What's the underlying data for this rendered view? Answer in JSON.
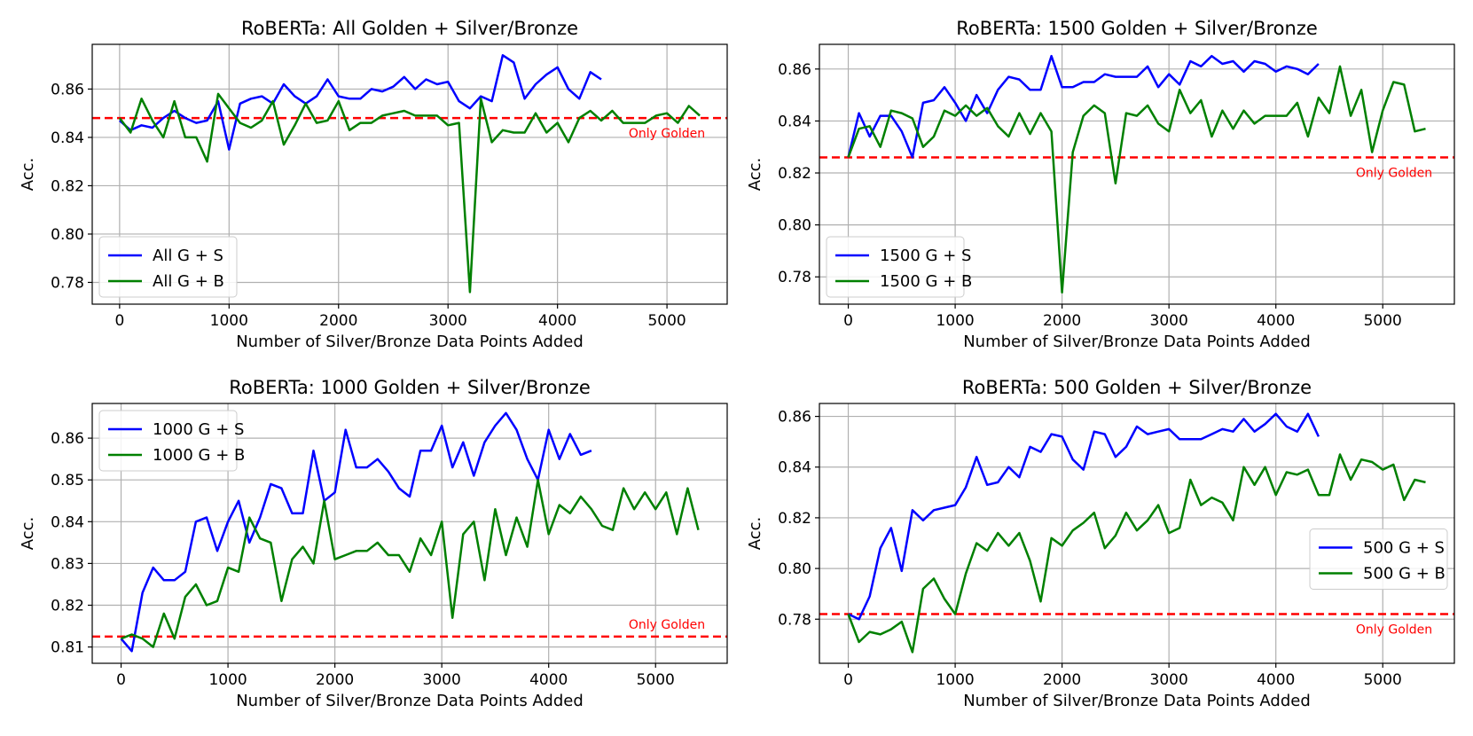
{
  "colors": {
    "G + S": "#0000ff",
    "G + B": "#008000",
    "golden": "#ff0000",
    "grid": "#b0b0b0"
  },
  "chart_data": [
    {
      "type": "line",
      "title": "RoBERTa: All Golden + Silver/Bronze",
      "xlabel": "Number of Silver/Bronze Data Points Added",
      "ylabel": "Acc.",
      "xlim": [
        -250,
        5550
      ],
      "ylim": [
        0.771,
        0.8785
      ],
      "xticks": [
        0,
        1000,
        2000,
        3000,
        4000,
        5000
      ],
      "yticks": [
        0.78,
        0.8,
        0.82,
        0.84,
        0.86
      ],
      "ytick_labels": [
        "0.78",
        "0.80",
        "0.82",
        "0.84",
        "0.86"
      ],
      "golden": 0.848,
      "golden_label": "Only Golden",
      "golden_label_pos": "right-below",
      "legend_position": "lower-left",
      "series": [
        {
          "name": "All G + S",
          "color_key": "G + S",
          "x_start": 0,
          "x_step": 100,
          "values": [
            0.847,
            0.843,
            0.845,
            0.844,
            0.848,
            0.851,
            0.848,
            0.846,
            0.847,
            0.855,
            0.835,
            0.854,
            0.856,
            0.857,
            0.854,
            0.862,
            0.857,
            0.854,
            0.857,
            0.864,
            0.857,
            0.856,
            0.856,
            0.86,
            0.859,
            0.861,
            0.865,
            0.86,
            0.864,
            0.862,
            0.863,
            0.855,
            0.852,
            0.857,
            0.855,
            0.874,
            0.871,
            0.856,
            0.862,
            0.866,
            0.869,
            0.86,
            0.856,
            0.867,
            0.864
          ]
        },
        {
          "name": "All G + B",
          "color_key": "G + B",
          "x_start": 0,
          "x_step": 100,
          "values": [
            0.848,
            0.842,
            0.856,
            0.847,
            0.84,
            0.855,
            0.84,
            0.84,
            0.83,
            0.858,
            0.852,
            0.846,
            0.844,
            0.847,
            0.855,
            0.837,
            0.845,
            0.854,
            0.846,
            0.847,
            0.855,
            0.843,
            0.846,
            0.846,
            0.849,
            0.85,
            0.851,
            0.849,
            0.849,
            0.849,
            0.845,
            0.846,
            0.776,
            0.856,
            0.838,
            0.843,
            0.842,
            0.842,
            0.85,
            0.842,
            0.846,
            0.838,
            0.848,
            0.851,
            0.847,
            0.851,
            0.846,
            0.846,
            0.846,
            0.849,
            0.85,
            0.846,
            0.853,
            0.849
          ]
        }
      ]
    },
    {
      "type": "line",
      "title": "RoBERTa: 1500 Golden + Silver/Bronze",
      "xlabel": "Number of Silver/Bronze Data Points Added",
      "ylabel": "Acc.",
      "xlim": [
        -270,
        5670
      ],
      "ylim": [
        0.7695,
        0.8695
      ],
      "xticks": [
        0,
        1000,
        2000,
        3000,
        4000,
        5000
      ],
      "yticks": [
        0.78,
        0.8,
        0.82,
        0.84,
        0.86
      ],
      "ytick_labels": [
        "0.78",
        "0.80",
        "0.82",
        "0.84",
        "0.86"
      ],
      "golden": 0.826,
      "golden_label": "Only Golden",
      "golden_label_pos": "right-below",
      "legend_position": "lower-left",
      "series": [
        {
          "name": "1500 G + S",
          "color_key": "G + S",
          "x_start": 0,
          "x_step": 100,
          "values": [
            0.826,
            0.843,
            0.834,
            0.842,
            0.842,
            0.836,
            0.826,
            0.847,
            0.848,
            0.853,
            0.847,
            0.84,
            0.85,
            0.843,
            0.852,
            0.857,
            0.856,
            0.852,
            0.852,
            0.865,
            0.853,
            0.853,
            0.855,
            0.855,
            0.858,
            0.857,
            0.857,
            0.857,
            0.861,
            0.853,
            0.858,
            0.854,
            0.863,
            0.861,
            0.865,
            0.862,
            0.863,
            0.859,
            0.863,
            0.862,
            0.859,
            0.861,
            0.86,
            0.858,
            0.862
          ]
        },
        {
          "name": "1500 G + B",
          "color_key": "G + B",
          "x_start": 0,
          "x_step": 100,
          "values": [
            0.826,
            0.837,
            0.838,
            0.83,
            0.844,
            0.843,
            0.841,
            0.83,
            0.834,
            0.844,
            0.842,
            0.846,
            0.842,
            0.845,
            0.838,
            0.834,
            0.843,
            0.835,
            0.843,
            0.836,
            0.774,
            0.828,
            0.842,
            0.846,
            0.843,
            0.816,
            0.843,
            0.842,
            0.846,
            0.839,
            0.836,
            0.852,
            0.843,
            0.848,
            0.834,
            0.844,
            0.837,
            0.844,
            0.839,
            0.842,
            0.842,
            0.842,
            0.847,
            0.834,
            0.849,
            0.843,
            0.861,
            0.842,
            0.852,
            0.828,
            0.844,
            0.855,
            0.854,
            0.836,
            0.837
          ]
        }
      ]
    },
    {
      "type": "line",
      "title": "RoBERTa: 1000 Golden + Silver/Bronze",
      "xlabel": "Number of Silver/Bronze Data Points Added",
      "ylabel": "Acc.",
      "xlim": [
        -270,
        5670
      ],
      "ylim": [
        0.8061,
        0.8683
      ],
      "xticks": [
        0,
        1000,
        2000,
        3000,
        4000,
        5000
      ],
      "yticks": [
        0.81,
        0.82,
        0.83,
        0.84,
        0.85,
        0.86
      ],
      "ytick_labels": [
        "0.81",
        "0.82",
        "0.83",
        "0.84",
        "0.85",
        "0.86"
      ],
      "golden": 0.8125,
      "golden_label": "Only Golden",
      "golden_label_pos": "right-above",
      "legend_position": "upper-left",
      "series": [
        {
          "name": "1000 G + S",
          "color_key": "G + S",
          "x_start": 0,
          "x_step": 100,
          "values": [
            0.812,
            0.809,
            0.823,
            0.829,
            0.826,
            0.826,
            0.828,
            0.84,
            0.841,
            0.833,
            0.84,
            0.845,
            0.835,
            0.841,
            0.849,
            0.848,
            0.842,
            0.842,
            0.857,
            0.845,
            0.847,
            0.862,
            0.853,
            0.853,
            0.855,
            0.852,
            0.848,
            0.846,
            0.857,
            0.857,
            0.863,
            0.853,
            0.859,
            0.851,
            0.859,
            0.863,
            0.866,
            0.862,
            0.855,
            0.85,
            0.862,
            0.855,
            0.861,
            0.856,
            0.857
          ]
        },
        {
          "name": "1000 G + B",
          "color_key": "G + B",
          "x_start": 0,
          "x_step": 100,
          "values": [
            0.812,
            0.813,
            0.812,
            0.81,
            0.818,
            0.812,
            0.822,
            0.825,
            0.82,
            0.821,
            0.829,
            0.828,
            0.841,
            0.836,
            0.835,
            0.821,
            0.831,
            0.834,
            0.83,
            0.845,
            0.831,
            0.832,
            0.833,
            0.833,
            0.835,
            0.832,
            0.832,
            0.828,
            0.836,
            0.832,
            0.84,
            0.817,
            0.837,
            0.84,
            0.826,
            0.843,
            0.832,
            0.841,
            0.834,
            0.85,
            0.837,
            0.844,
            0.842,
            0.846,
            0.843,
            0.839,
            0.838,
            0.848,
            0.843,
            0.847,
            0.843,
            0.847,
            0.837,
            0.848,
            0.838
          ]
        }
      ]
    },
    {
      "type": "line",
      "title": "RoBERTa: 500 Golden + Silver/Bronze",
      "xlabel": "Number of Silver/Bronze Data Points Added",
      "ylabel": "Acc.",
      "xlim": [
        -270,
        5670
      ],
      "ylim": [
        0.7626,
        0.8651
      ],
      "xticks": [
        0,
        1000,
        2000,
        3000,
        4000,
        5000
      ],
      "yticks": [
        0.78,
        0.8,
        0.82,
        0.84,
        0.86
      ],
      "ytick_labels": [
        "0.78",
        "0.80",
        "0.82",
        "0.84",
        "0.86"
      ],
      "golden": 0.782,
      "golden_label": "Only Golden",
      "golden_label_pos": "right-below",
      "legend_position": "center-right",
      "series": [
        {
          "name": "500 G + S",
          "color_key": "G + S",
          "x_start": 0,
          "x_step": 100,
          "values": [
            0.782,
            0.78,
            0.789,
            0.808,
            0.816,
            0.799,
            0.823,
            0.819,
            0.823,
            0.824,
            0.825,
            0.832,
            0.844,
            0.833,
            0.834,
            0.84,
            0.836,
            0.848,
            0.846,
            0.853,
            0.852,
            0.843,
            0.839,
            0.854,
            0.853,
            0.844,
            0.848,
            0.856,
            0.853,
            0.854,
            0.855,
            0.851,
            0.851,
            0.851,
            0.853,
            0.855,
            0.854,
            0.859,
            0.854,
            0.857,
            0.861,
            0.856,
            0.854,
            0.861,
            0.852
          ]
        },
        {
          "name": "500 G + B",
          "color_key": "G + B",
          "x_start": 0,
          "x_step": 100,
          "values": [
            0.782,
            0.771,
            0.775,
            0.774,
            0.776,
            0.779,
            0.767,
            0.792,
            0.796,
            0.788,
            0.782,
            0.798,
            0.81,
            0.807,
            0.814,
            0.809,
            0.814,
            0.803,
            0.787,
            0.812,
            0.809,
            0.815,
            0.818,
            0.822,
            0.808,
            0.813,
            0.822,
            0.815,
            0.819,
            0.825,
            0.814,
            0.816,
            0.835,
            0.825,
            0.828,
            0.826,
            0.819,
            0.84,
            0.833,
            0.84,
            0.829,
            0.838,
            0.837,
            0.839,
            0.829,
            0.829,
            0.845,
            0.835,
            0.843,
            0.842,
            0.839,
            0.841,
            0.827,
            0.835,
            0.834
          ]
        }
      ]
    }
  ]
}
